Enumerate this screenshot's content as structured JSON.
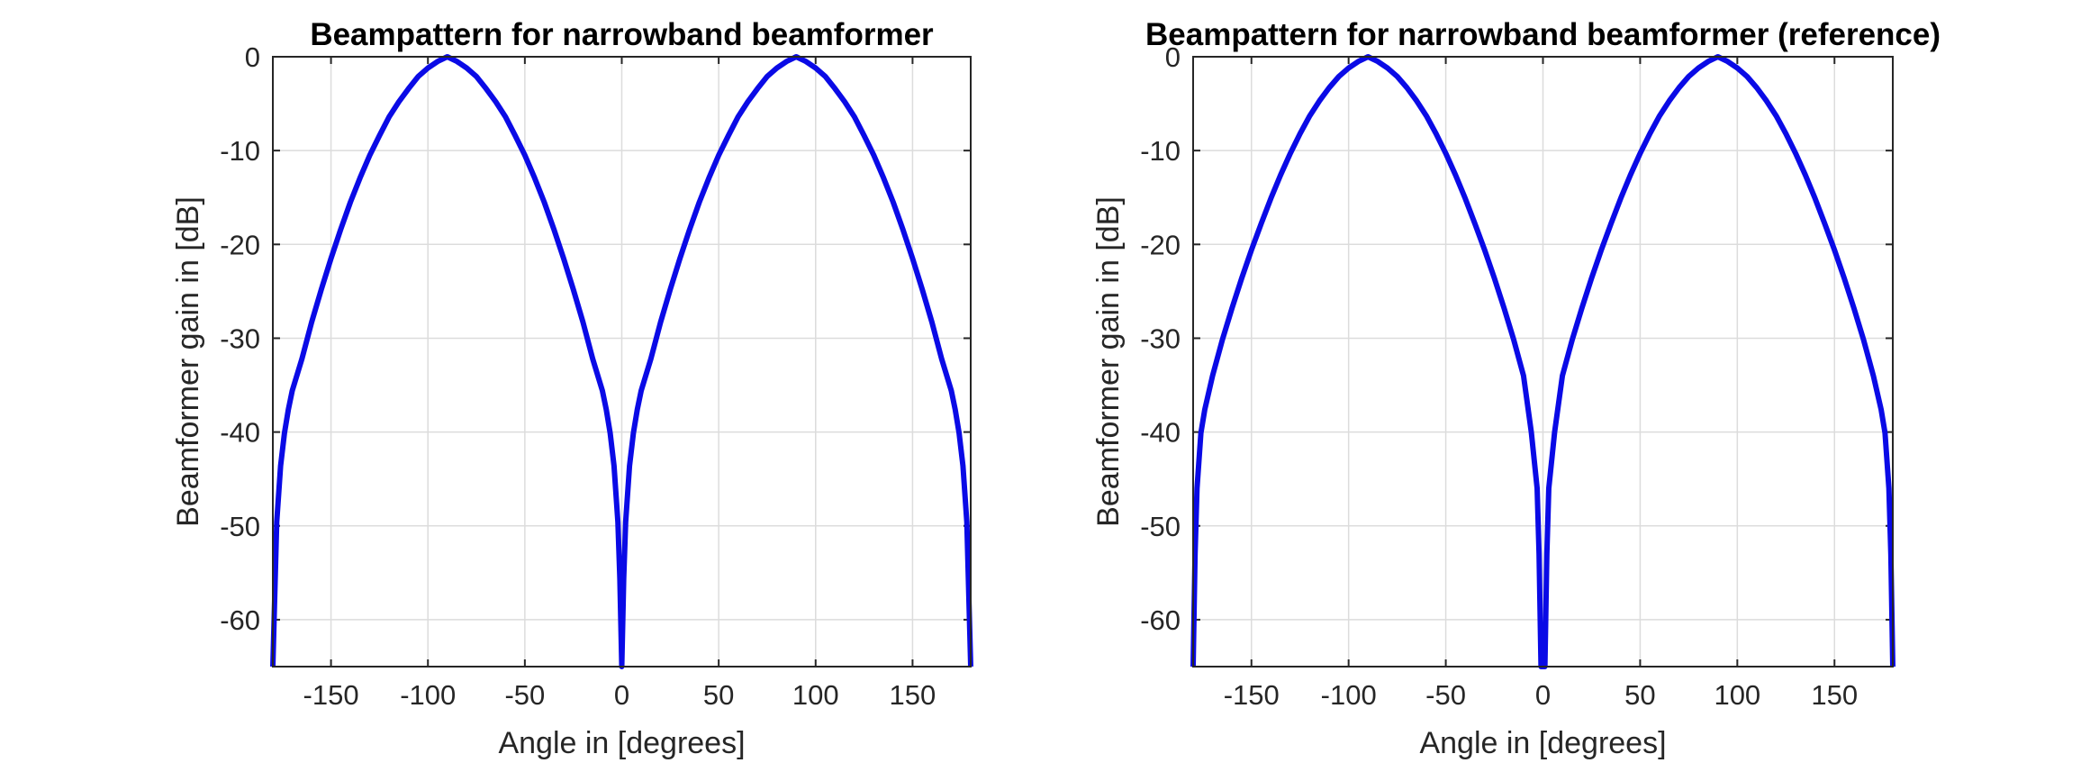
{
  "chart_data": [
    {
      "type": "line",
      "title": "Beampattern for narrowband beamformer",
      "xlabel": "Angle in [degrees]",
      "ylabel": "Beamformer gain in [dB]",
      "xlim": [
        -180,
        180
      ],
      "ylim": [
        -65,
        0
      ],
      "xticks": [
        -150,
        -100,
        -50,
        0,
        50,
        100,
        150
      ],
      "yticks": [
        0,
        -10,
        -20,
        -30,
        -40,
        -50,
        -60
      ],
      "grid": true,
      "line_color": "#0a0ae6",
      "series": [
        {
          "x": [
            -180,
            -178,
            -176,
            -174,
            -172,
            -170,
            -165,
            -160,
            -155,
            -150,
            -145,
            -140,
            -135,
            -130,
            -125,
            -120,
            -115,
            -110,
            -105,
            -100,
            -95,
            -90,
            -85,
            -80,
            -75,
            -70,
            -65,
            -60,
            -55,
            -50,
            -45,
            -40,
            -35,
            -30,
            -25,
            -20,
            -15,
            -10,
            -8,
            -6,
            -4,
            -2,
            -1,
            0,
            1,
            2,
            4,
            6,
            8,
            10,
            15,
            20,
            25,
            30,
            35,
            40,
            45,
            50,
            55,
            60,
            65,
            70,
            75,
            80,
            85,
            90,
            95,
            100,
            105,
            110,
            115,
            120,
            125,
            130,
            135,
            140,
            145,
            150,
            155,
            160,
            165,
            170,
            172,
            174,
            176,
            178,
            180
          ],
          "y": [
            -65,
            -49.6,
            -43.6,
            -40.1,
            -37.6,
            -35.6,
            -32.2,
            -28.3,
            -24.8,
            -21.5,
            -18.4,
            -15.5,
            -12.9,
            -10.5,
            -8.4,
            -6.4,
            -4.8,
            -3.4,
            -2.1,
            -1.2,
            -0.5,
            0,
            -0.5,
            -1.2,
            -2.1,
            -3.4,
            -4.8,
            -6.4,
            -8.4,
            -10.5,
            -12.9,
            -15.5,
            -18.4,
            -21.5,
            -24.8,
            -28.3,
            -32.2,
            -35.6,
            -37.6,
            -40.1,
            -43.6,
            -49.6,
            -55.6,
            -65,
            -55.6,
            -49.6,
            -43.6,
            -40.1,
            -37.6,
            -35.6,
            -32.2,
            -28.3,
            -24.8,
            -21.5,
            -18.4,
            -15.5,
            -12.9,
            -10.5,
            -8.4,
            -6.4,
            -4.8,
            -3.4,
            -2.1,
            -1.2,
            -0.5,
            0,
            -0.5,
            -1.2,
            -2.1,
            -3.4,
            -4.8,
            -6.4,
            -8.4,
            -10.5,
            -12.9,
            -15.5,
            -18.4,
            -21.5,
            -24.8,
            -28.3,
            -32.2,
            -35.6,
            -37.6,
            -40.1,
            -43.6,
            -49.6,
            -65
          ]
        }
      ]
    },
    {
      "type": "line",
      "title": "Beampattern for narrowband beamformer (reference)",
      "xlabel": "Angle in [degrees]",
      "ylabel": "Beamformer gain in [dB]",
      "xlim": [
        -180,
        180
      ],
      "ylim": [
        -65,
        0
      ],
      "xticks": [
        -150,
        -100,
        -50,
        0,
        50,
        100,
        150
      ],
      "yticks": [
        0,
        -10,
        -20,
        -30,
        -40,
        -50,
        -60
      ],
      "grid": true,
      "line_color": "#0a0ae6",
      "series": [
        {
          "x": [
            -180,
            -179,
            -178,
            -176,
            -174,
            -170,
            -165,
            -160,
            -155,
            -150,
            -145,
            -140,
            -135,
            -130,
            -125,
            -120,
            -115,
            -110,
            -105,
            -100,
            -95,
            -90,
            -85,
            -80,
            -75,
            -70,
            -65,
            -60,
            -55,
            -50,
            -45,
            -40,
            -35,
            -30,
            -25,
            -20,
            -15,
            -10,
            -6,
            -3,
            -2,
            -1,
            0,
            1,
            2,
            3,
            6,
            10,
            15,
            20,
            25,
            30,
            35,
            40,
            45,
            50,
            55,
            60,
            65,
            70,
            75,
            80,
            85,
            90,
            95,
            100,
            105,
            110,
            115,
            120,
            125,
            130,
            135,
            140,
            145,
            150,
            155,
            160,
            165,
            170,
            174,
            176,
            178,
            179,
            180
          ],
          "y": [
            -65,
            -53,
            -46,
            -40.1,
            -37.6,
            -34,
            -30.2,
            -26.8,
            -23.6,
            -20.6,
            -17.8,
            -15.1,
            -12.6,
            -10.3,
            -8.2,
            -6.3,
            -4.7,
            -3.3,
            -2.1,
            -1.2,
            -0.5,
            0,
            -0.5,
            -1.2,
            -2.1,
            -3.3,
            -4.7,
            -6.3,
            -8.2,
            -10.3,
            -12.6,
            -15.1,
            -17.8,
            -20.6,
            -23.6,
            -26.8,
            -30.2,
            -34,
            -40,
            -46,
            -53,
            -65,
            -65,
            -65,
            -53,
            -46,
            -40,
            -34,
            -30.2,
            -26.8,
            -23.6,
            -20.6,
            -17.8,
            -15.1,
            -12.6,
            -10.3,
            -8.2,
            -6.3,
            -4.7,
            -3.3,
            -2.1,
            -1.2,
            -0.5,
            0,
            -0.5,
            -1.2,
            -2.1,
            -3.3,
            -4.7,
            -6.3,
            -8.2,
            -10.3,
            -12.6,
            -15.1,
            -17.8,
            -20.6,
            -23.6,
            -26.8,
            -30.2,
            -34,
            -37.6,
            -40.1,
            -46,
            -53,
            -65
          ]
        }
      ]
    }
  ]
}
